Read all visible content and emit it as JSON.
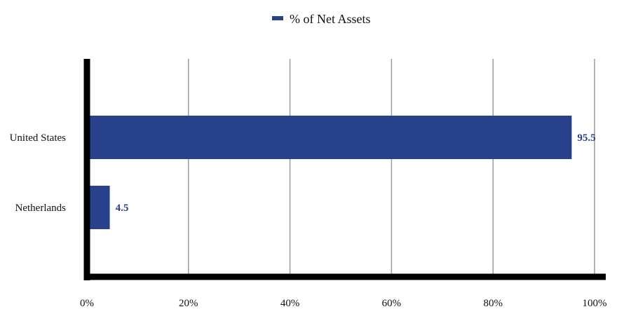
{
  "legend": {
    "label": "% of Net Assets",
    "color": "#27418C"
  },
  "chart_data": {
    "type": "bar",
    "orientation": "horizontal",
    "title": "",
    "xlabel": "",
    "ylabel": "",
    "categories": [
      "United States",
      "Netherlands"
    ],
    "series": [
      {
        "name": "% of Net Assets",
        "values": [
          95.5,
          4.5
        ],
        "color": "#27418C"
      }
    ],
    "data_labels": [
      "95.5",
      "4.5"
    ],
    "xlim": [
      0,
      100
    ],
    "x_ticks": [
      0,
      20,
      40,
      60,
      80,
      100
    ],
    "x_tick_labels": [
      "0%",
      "20%",
      "40%",
      "60%",
      "80%",
      "100%"
    ],
    "grid": true,
    "legend_position": "top-center"
  }
}
